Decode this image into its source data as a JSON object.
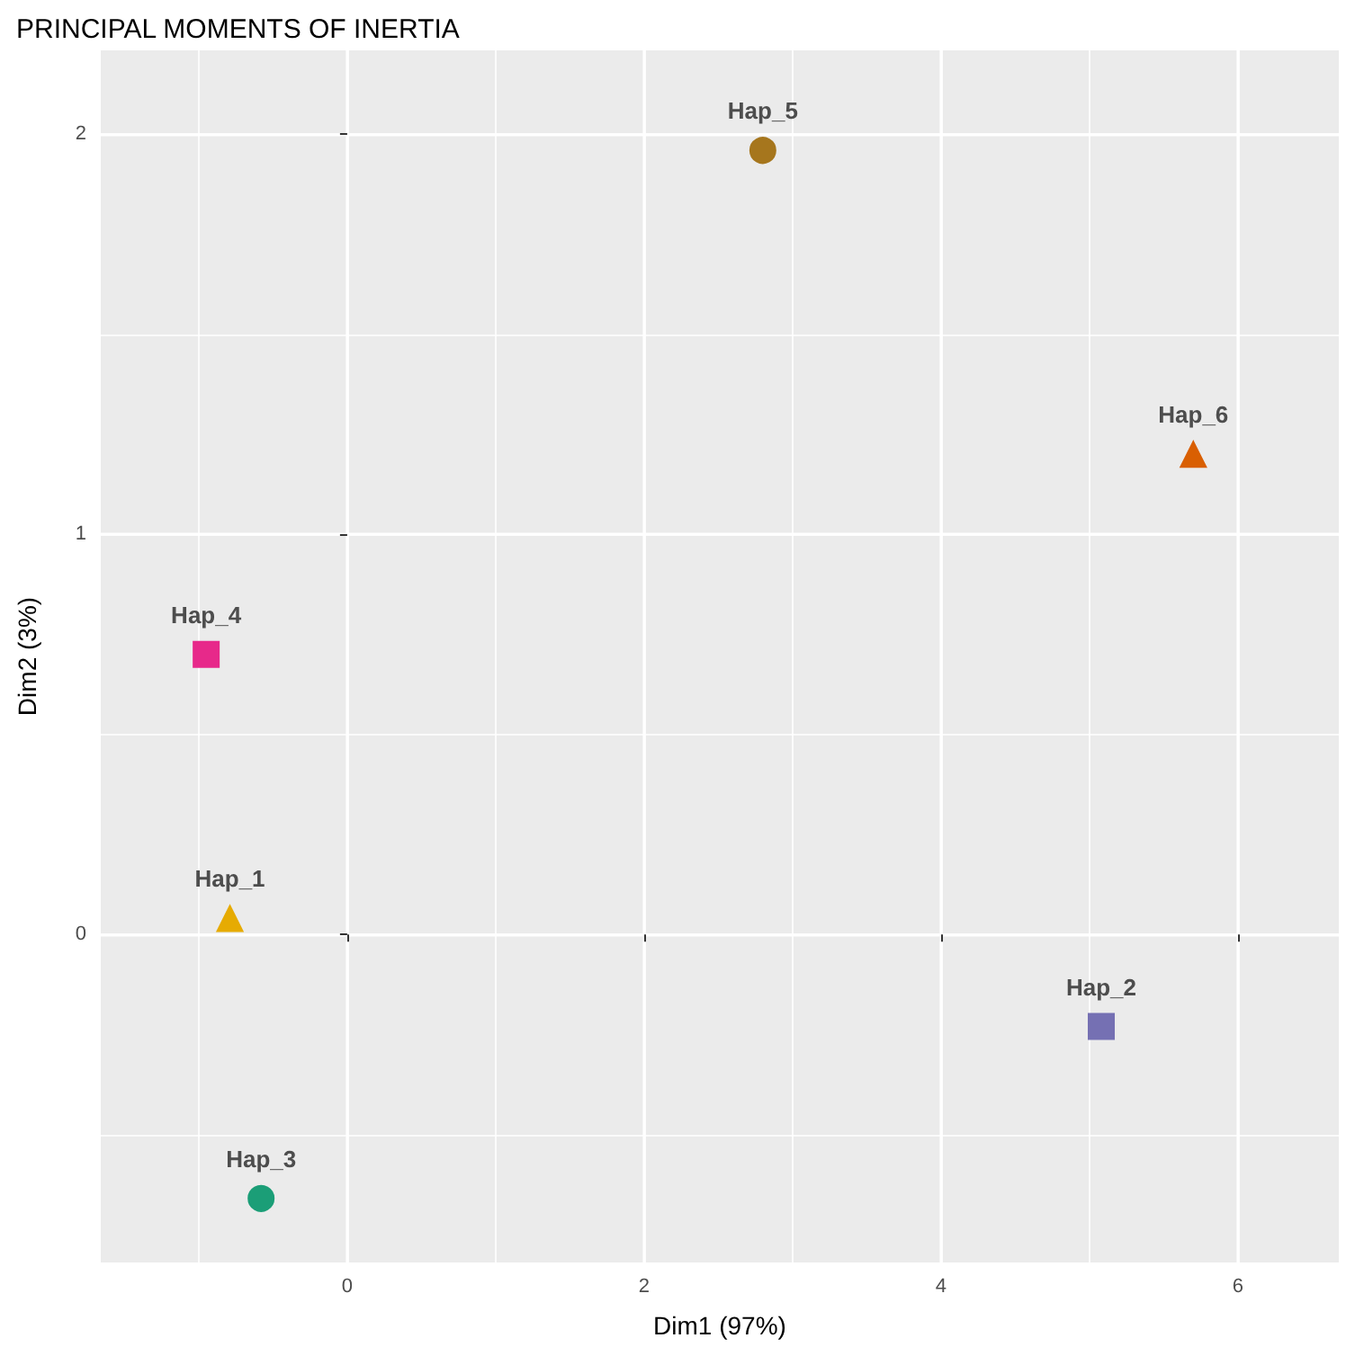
{
  "chart_data": {
    "type": "scatter",
    "title": "PRINCIPAL MOMENTS OF INERTIA",
    "xlabel": "Dim1 (97%)",
    "ylabel": "Dim2 (3%)",
    "xlim": [
      -1.66,
      6.68
    ],
    "ylim": [
      -0.82,
      2.21
    ],
    "xticks": [
      {
        "value": -1,
        "label": null
      },
      0,
      {
        "value": 1,
        "label": null
      },
      2,
      {
        "value": 3,
        "label": null
      },
      4,
      {
        "value": 5,
        "label": null
      },
      6
    ],
    "yticks": [
      {
        "value": -0.5,
        "label": null
      },
      0,
      {
        "value": 0.5,
        "label": null
      },
      1,
      {
        "value": 1.5,
        "label": null
      },
      2
    ],
    "grid": true,
    "legend": false,
    "series": [
      {
        "name": "Hap_1",
        "color": "#e6ab02",
        "marker": "triangle",
        "x": [
          -0.79
        ],
        "values": [
          0.04
        ]
      },
      {
        "name": "Hap_2",
        "color": "#7570b3",
        "marker": "square",
        "x": [
          5.08
        ],
        "values": [
          -0.23
        ]
      },
      {
        "name": "Hap_3",
        "color": "#1b9e77",
        "marker": "circle",
        "x": [
          -0.58
        ],
        "values": [
          -0.66
        ]
      },
      {
        "name": "Hap_4",
        "color": "#e7298a",
        "marker": "square",
        "x": [
          -0.95
        ],
        "values": [
          0.7
        ]
      },
      {
        "name": "Hap_5",
        "color": "#a6761d",
        "marker": "circle",
        "x": [
          2.8
        ],
        "values": [
          1.96
        ]
      },
      {
        "name": "Hap_6",
        "color": "#d95f02",
        "marker": "triangle",
        "x": [
          5.7
        ],
        "values": [
          1.2
        ]
      }
    ]
  }
}
